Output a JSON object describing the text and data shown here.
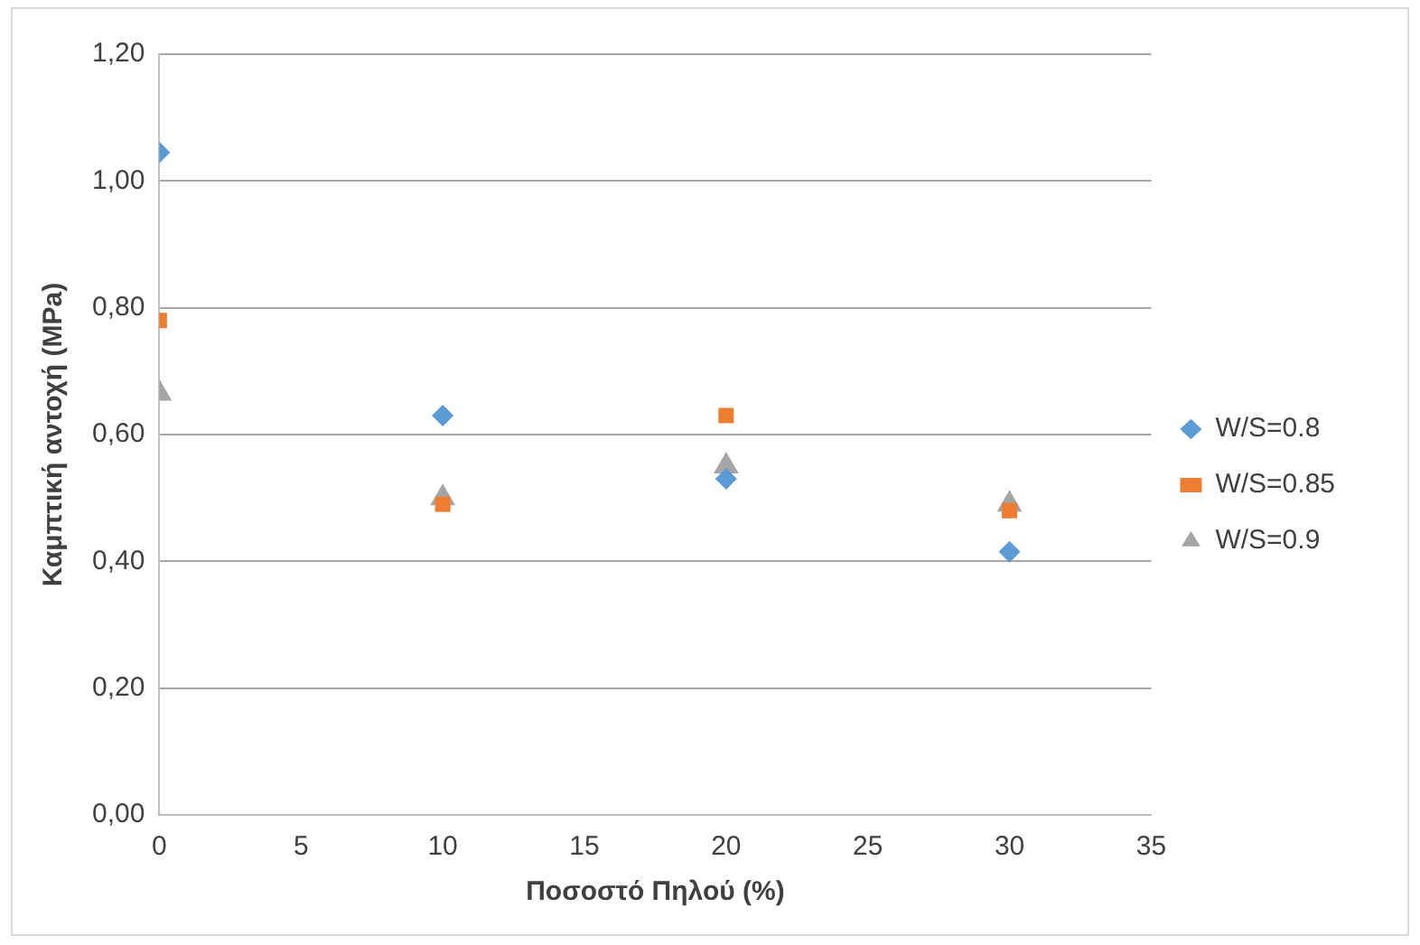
{
  "chart_data": {
    "type": "scatter",
    "xlabel": "Ποσοστό Πηλού (%)",
    "ylabel": "Καμπτική αντοχή (MPa)",
    "x": [
      0,
      10,
      20,
      30
    ],
    "series": [
      {
        "name": "W/S=0.8",
        "color": "#5b9bd5",
        "marker": "diamond",
        "values": [
          1.045,
          0.63,
          0.53,
          0.415
        ]
      },
      {
        "name": "W/S=0.85",
        "color": "#ed7d31",
        "marker": "square",
        "values": [
          0.78,
          0.49,
          0.63,
          0.48
        ]
      },
      {
        "name": "W/S=0.9",
        "color": "#a5a5a5",
        "marker": "triangle",
        "values": [
          0.665,
          0.5,
          0.55,
          0.49
        ]
      }
    ],
    "xlim": [
      0,
      35
    ],
    "xticks": [
      0,
      5,
      10,
      15,
      20,
      25,
      30,
      35
    ],
    "ylim": [
      0,
      1.2
    ],
    "yticks": [
      {
        "value": 0,
        "label": "0,00"
      },
      {
        "value": 0.2,
        "label": "0,20"
      },
      {
        "value": 0.4,
        "label": "0,40"
      },
      {
        "value": 0.6,
        "label": "0,60"
      },
      {
        "value": 0.8,
        "label": "0,80"
      },
      {
        "value": 1.0,
        "label": "1,00"
      },
      {
        "value": 1.2,
        "label": "1,20"
      }
    ],
    "grid": "y",
    "legend": "right"
  }
}
